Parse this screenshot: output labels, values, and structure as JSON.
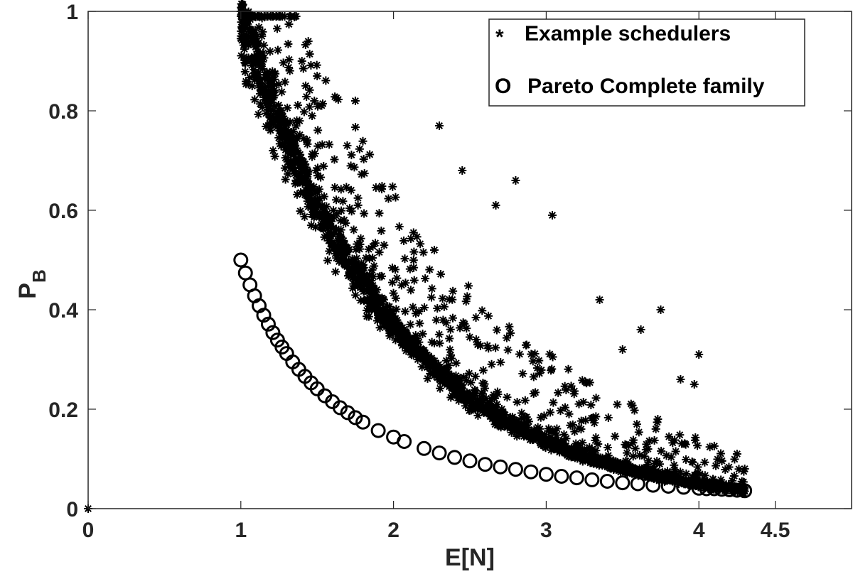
{
  "chart_data": {
    "type": "scatter",
    "title": "",
    "xlabel": "E[N]",
    "ylabel": "P_B",
    "ylabel_main": "P",
    "ylabel_sub": "B",
    "xlim": [
      0,
      5
    ],
    "ylim": [
      0,
      1
    ],
    "xticks": [
      0,
      1,
      2,
      3,
      4,
      4.5
    ],
    "xtick_labels": [
      "0",
      "1",
      "2",
      "3",
      "4",
      "4.5"
    ],
    "yticks": [
      0,
      0.2,
      0.4,
      0.6,
      0.8,
      1
    ],
    "ytick_labels": [
      "0",
      "0.2",
      "0.4",
      "0.6",
      "0.8",
      "1"
    ],
    "grid": false,
    "legend_position": "upper right",
    "series": [
      {
        "name": "Example schedulers",
        "marker": "*",
        "color": "#000000",
        "description": "Dense band following P_B ≈ exp(-(E[N]-1)) from (1,1) to (4.3,0.035), with scattered points above the band up to ~E[N]=4.3; one point at (0,0)",
        "band_formula": "exp(-(x-1))",
        "x_range": [
          1.0,
          4.3
        ],
        "sample_points": [
          [
            0,
            0
          ],
          [
            1.0,
            1.0
          ],
          [
            1.1,
            0.93
          ],
          [
            1.2,
            0.85
          ],
          [
            1.5,
            0.62
          ],
          [
            1.7,
            0.52
          ],
          [
            2.0,
            0.37
          ],
          [
            2.5,
            0.22
          ],
          [
            3.0,
            0.14
          ],
          [
            3.5,
            0.085
          ],
          [
            4.0,
            0.05
          ],
          [
            4.3,
            0.035
          ],
          [
            1.4,
            0.9
          ],
          [
            1.5,
            0.87
          ],
          [
            1.75,
            0.82
          ],
          [
            2.3,
            0.77
          ],
          [
            2.45,
            0.68
          ],
          [
            2.8,
            0.66
          ],
          [
            3.04,
            0.59
          ],
          [
            2.67,
            0.61
          ],
          [
            3.35,
            0.42
          ],
          [
            3.75,
            0.4
          ],
          [
            3.62,
            0.36
          ],
          [
            3.5,
            0.32
          ],
          [
            4.0,
            0.31
          ],
          [
            3.88,
            0.26
          ],
          [
            3.97,
            0.25
          ],
          [
            4.25,
            0.11
          ],
          [
            4.3,
            0.08
          ]
        ]
      },
      {
        "name": "Pareto Complete family",
        "marker": "o",
        "color": "#000000",
        "formula": "0.5 * x^-1.8",
        "x": [
          1.0,
          1.03,
          1.06,
          1.09,
          1.12,
          1.15,
          1.18,
          1.21,
          1.24,
          1.27,
          1.3,
          1.34,
          1.38,
          1.42,
          1.46,
          1.5,
          1.55,
          1.6,
          1.65,
          1.7,
          1.75,
          1.8,
          1.9,
          2.0,
          2.07,
          2.2,
          2.3,
          2.4,
          2.5,
          2.6,
          2.7,
          2.8,
          2.9,
          3.0,
          3.1,
          3.2,
          3.3,
          3.4,
          3.5,
          3.6,
          3.7,
          3.8,
          3.9,
          4.0,
          4.05,
          4.1,
          4.15,
          4.2,
          4.25,
          4.3
        ],
        "y": [
          0.5,
          0.474,
          0.45,
          0.428,
          0.408,
          0.389,
          0.371,
          0.354,
          0.339,
          0.325,
          0.312,
          0.295,
          0.28,
          0.266,
          0.253,
          0.241,
          0.227,
          0.215,
          0.203,
          0.193,
          0.183,
          0.174,
          0.157,
          0.144,
          0.135,
          0.121,
          0.112,
          0.103,
          0.096,
          0.089,
          0.084,
          0.079,
          0.074,
          0.069,
          0.065,
          0.062,
          0.058,
          0.055,
          0.052,
          0.05,
          0.047,
          0.045,
          0.043,
          0.041,
          0.04,
          0.04,
          0.039,
          0.038,
          0.037,
          0.036
        ]
      }
    ]
  },
  "legend": {
    "items": [
      {
        "symbol": "*",
        "label": "Example schedulers"
      },
      {
        "symbol": "O",
        "label": "Pareto Complete family"
      }
    ]
  }
}
